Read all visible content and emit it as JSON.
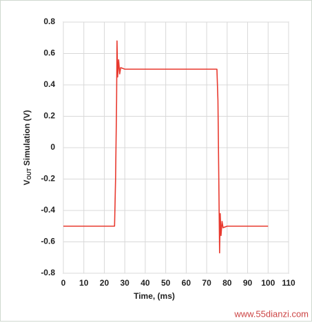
{
  "chart_data": {
    "type": "line",
    "ylabel": {
      "main": "V",
      "sub": "OUT",
      "rest": " Simulation (V)"
    },
    "xlabel": "Time, (ms)",
    "watermark": "www.55dianzi.com",
    "x": [
      0,
      25,
      25.5,
      26,
      26.2,
      26.5,
      27,
      27.5,
      28,
      30,
      75,
      75.5,
      76,
      76.3,
      76.6,
      77,
      77.5,
      78,
      80,
      100
    ],
    "series": [
      {
        "name": "VOUT",
        "color": "#e8392e",
        "values": [
          -0.5,
          -0.5,
          -0.2,
          0.3,
          0.68,
          0.45,
          0.56,
          0.47,
          0.51,
          0.5,
          0.5,
          0.3,
          -0.3,
          -0.67,
          -0.42,
          -0.56,
          -0.47,
          -0.51,
          -0.5,
          -0.5
        ]
      }
    ],
    "xlim": [
      0,
      110
    ],
    "xticks": [
      0,
      10,
      20,
      30,
      40,
      50,
      60,
      70,
      80,
      90,
      100,
      110
    ],
    "ylim": [
      -0.8,
      0.8
    ],
    "yticks": [
      0.8,
      0.6,
      0.4,
      0.2,
      0,
      -0.2,
      -0.4,
      -0.6,
      -0.8
    ],
    "grid": true
  }
}
